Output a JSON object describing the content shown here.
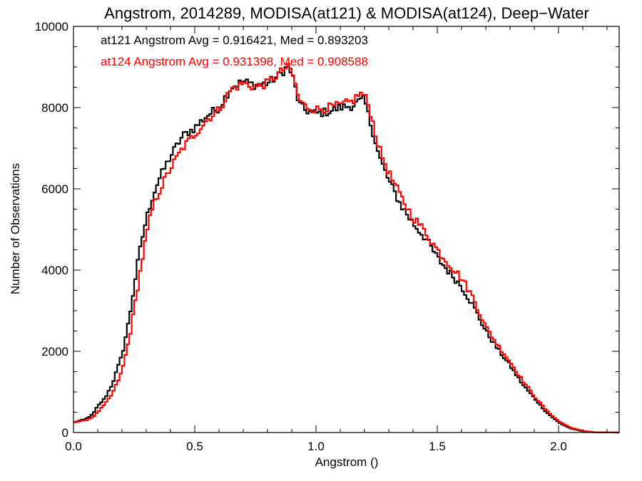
{
  "chart_data": {
    "type": "line",
    "title": "Angstrom, 2014289, MODISA(at121) & MODISA(at124), Deep−Water",
    "xlabel": "Angstrom ()",
    "ylabel": "Number of Observations",
    "xlim": [
      0.0,
      2.25
    ],
    "ylim": [
      0,
      10000
    ],
    "x_ticks": [
      "0.0",
      "0.5",
      "1.0",
      "1.5",
      "2.0"
    ],
    "y_ticks": [
      "0",
      "2000",
      "4000",
      "6000",
      "8000",
      "10000"
    ],
    "grid": false,
    "step": true,
    "bin_width": 0.01,
    "annotations": [
      {
        "text": "at121 Angstrom Avg = 0.916421, Med = 0.893203",
        "color": "#000000"
      },
      {
        "text": "at124 Angstrom Avg = 0.931398, Med = 0.908588",
        "color": "#ff0000"
      }
    ],
    "series": [
      {
        "color": "#000000",
        "anchors": [
          [
            0.0,
            250
          ],
          [
            0.05,
            330
          ],
          [
            0.08,
            450
          ],
          [
            0.1,
            650
          ],
          [
            0.13,
            850
          ],
          [
            0.16,
            1200
          ],
          [
            0.2,
            1900
          ],
          [
            0.23,
            2800
          ],
          [
            0.26,
            4000
          ],
          [
            0.29,
            5000
          ],
          [
            0.32,
            5700
          ],
          [
            0.35,
            6200
          ],
          [
            0.4,
            6800
          ],
          [
            0.45,
            7300
          ],
          [
            0.5,
            7500
          ],
          [
            0.55,
            7800
          ],
          [
            0.6,
            8000
          ],
          [
            0.65,
            8500
          ],
          [
            0.7,
            8650
          ],
          [
            0.75,
            8550
          ],
          [
            0.8,
            8600
          ],
          [
            0.85,
            8800
          ],
          [
            0.88,
            9000
          ],
          [
            0.9,
            8850
          ],
          [
            0.93,
            8100
          ],
          [
            0.95,
            7950
          ],
          [
            1.0,
            7850
          ],
          [
            1.05,
            7900
          ],
          [
            1.1,
            8000
          ],
          [
            1.15,
            8050
          ],
          [
            1.18,
            8150
          ],
          [
            1.2,
            8200
          ],
          [
            1.22,
            7700
          ],
          [
            1.24,
            7300
          ],
          [
            1.26,
            6800
          ],
          [
            1.3,
            6200
          ],
          [
            1.35,
            5600
          ],
          [
            1.4,
            5150
          ],
          [
            1.45,
            4800
          ],
          [
            1.5,
            4300
          ],
          [
            1.55,
            3950
          ],
          [
            1.6,
            3600
          ],
          [
            1.65,
            3100
          ],
          [
            1.7,
            2500
          ],
          [
            1.75,
            2050
          ],
          [
            1.8,
            1650
          ],
          [
            1.85,
            1200
          ],
          [
            1.9,
            850
          ],
          [
            1.95,
            500
          ],
          [
            2.0,
            250
          ],
          [
            2.05,
            100
          ],
          [
            2.1,
            30
          ],
          [
            2.15,
            5
          ],
          [
            2.25,
            0
          ]
        ]
      },
      {
        "color": "#ff0000",
        "anchors": [
          [
            0.0,
            250
          ],
          [
            0.05,
            300
          ],
          [
            0.08,
            380
          ],
          [
            0.1,
            500
          ],
          [
            0.13,
            700
          ],
          [
            0.16,
            950
          ],
          [
            0.2,
            1500
          ],
          [
            0.23,
            2300
          ],
          [
            0.26,
            3400
          ],
          [
            0.29,
            4500
          ],
          [
            0.32,
            5400
          ],
          [
            0.35,
            5900
          ],
          [
            0.4,
            6500
          ],
          [
            0.45,
            7000
          ],
          [
            0.5,
            7350
          ],
          [
            0.55,
            7700
          ],
          [
            0.6,
            7950
          ],
          [
            0.65,
            8450
          ],
          [
            0.7,
            8600
          ],
          [
            0.75,
            8500
          ],
          [
            0.8,
            8600
          ],
          [
            0.85,
            8850
          ],
          [
            0.88,
            9000
          ],
          [
            0.9,
            8900
          ],
          [
            0.93,
            8200
          ],
          [
            0.95,
            8050
          ],
          [
            1.0,
            7950
          ],
          [
            1.05,
            8000
          ],
          [
            1.1,
            8050
          ],
          [
            1.15,
            8150
          ],
          [
            1.18,
            8350
          ],
          [
            1.2,
            8300
          ],
          [
            1.22,
            8000
          ],
          [
            1.24,
            7500
          ],
          [
            1.26,
            7000
          ],
          [
            1.3,
            6400
          ],
          [
            1.35,
            5800
          ],
          [
            1.4,
            5300
          ],
          [
            1.45,
            4950
          ],
          [
            1.5,
            4500
          ],
          [
            1.55,
            4150
          ],
          [
            1.6,
            3800
          ],
          [
            1.65,
            3300
          ],
          [
            1.7,
            2600
          ],
          [
            1.75,
            2150
          ],
          [
            1.8,
            1750
          ],
          [
            1.85,
            1300
          ],
          [
            1.9,
            900
          ],
          [
            1.95,
            550
          ],
          [
            2.0,
            280
          ],
          [
            2.05,
            120
          ],
          [
            2.1,
            40
          ],
          [
            2.15,
            8
          ],
          [
            2.25,
            0
          ]
        ]
      }
    ]
  }
}
